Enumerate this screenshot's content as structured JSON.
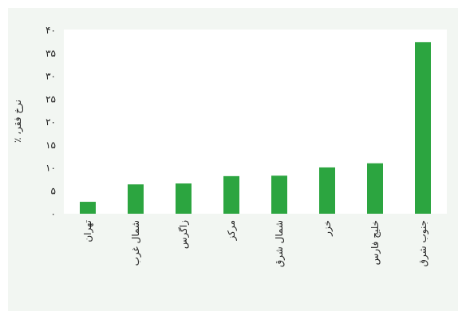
{
  "chart_data": {
    "type": "bar",
    "ylabel": "نرخ فقر، ٪",
    "categories": [
      "تهران",
      "شمال غرب",
      "زاگرس",
      "مرکز",
      "شمال شرق",
      "خزر",
      "خلیج فارس",
      "جنوب شرق"
    ],
    "values": [
      2.6,
      6.4,
      6.6,
      8.2,
      8.3,
      10.1,
      11.0,
      37.4
    ],
    "color": "#2ca540",
    "ylim": [
      0,
      40
    ],
    "yticks": [
      {
        "value": 0,
        "label": "۰"
      },
      {
        "value": 5,
        "label": "۵"
      },
      {
        "value": 10,
        "label": "۱۰"
      },
      {
        "value": 15,
        "label": "۱۵"
      },
      {
        "value": 20,
        "label": "۲۰"
      },
      {
        "value": 25,
        "label": "۲۵"
      },
      {
        "value": 30,
        "label": "۳۰"
      },
      {
        "value": 35,
        "label": "۳۵"
      },
      {
        "value": 40,
        "label": "۴۰"
      }
    ],
    "grid": false
  }
}
